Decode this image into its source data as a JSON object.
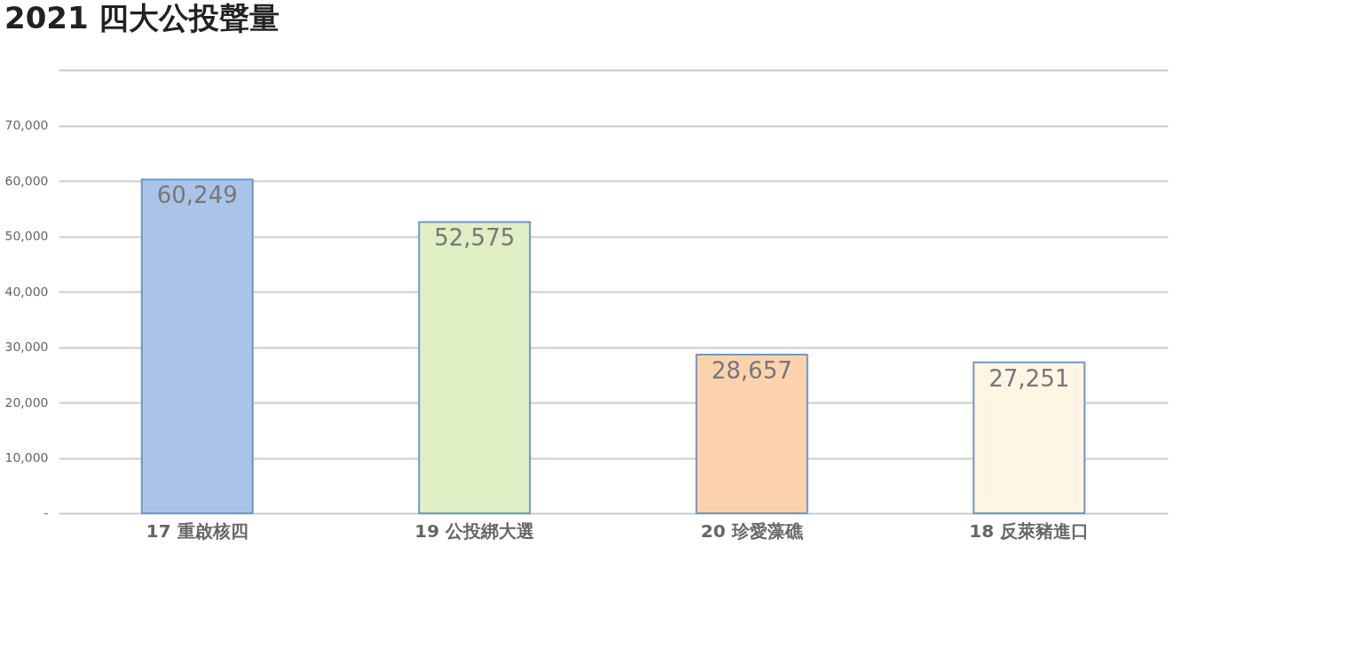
{
  "chart_data": {
    "type": "bar",
    "title": "2021  四大公投聲量",
    "categories": [
      "17 重啟核四",
      "19 公投綁大選",
      "20 珍愛藻礁",
      "18 反萊豬進口"
    ],
    "values": [
      60249,
      52575,
      28657,
      27251
    ],
    "value_labels": [
      "60,249",
      "52,575",
      "28,657",
      "27,251"
    ],
    "colors": [
      "#a9c4e8",
      "#e0efc4",
      "#fdd3ae",
      "#fff5e4"
    ],
    "ylim": [
      0,
      80000
    ],
    "yticks": [
      {
        "value": 0,
        "label": "-"
      },
      {
        "value": 10000,
        "label": "10,000"
      },
      {
        "value": 20000,
        "label": "20,000"
      },
      {
        "value": 30000,
        "label": "30,000"
      },
      {
        "value": 40000,
        "label": "40,000"
      },
      {
        "value": 50000,
        "label": "50,000"
      },
      {
        "value": 60000,
        "label": "60,000"
      },
      {
        "value": 70000,
        "label": "70,000"
      },
      {
        "value": 80000,
        "label": null
      }
    ],
    "grid": "y",
    "legend": false
  }
}
